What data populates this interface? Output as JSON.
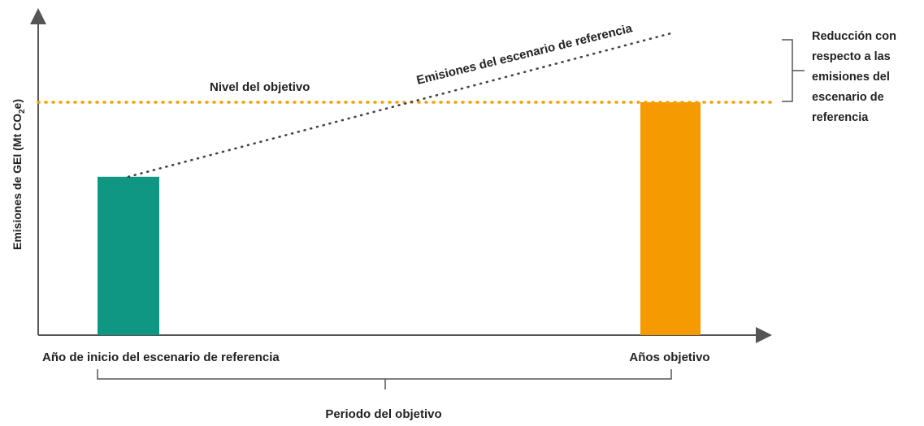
{
  "colors": {
    "base_bar": "#0f9784",
    "target_bar": "#f59a00",
    "target_line": "#f5a000",
    "baseline_line": "#444444",
    "axis": "#555555",
    "text": "#222222"
  },
  "labels": {
    "y_axis": "Emisiones de GEI (Mt CO₂e)",
    "target_level": "Nivel del objetivo",
    "baseline_emissions": "Emisiones del escenario de referencia",
    "reduction_lines": [
      "Reducción con",
      "respecto a las",
      "emisiones del",
      "escenario de",
      "referencia"
    ],
    "x_start": "Año de inicio del escenario de referencia",
    "x_end": "Años objetivo",
    "period": "Periodo del objetivo"
  },
  "chart_data": {
    "type": "bar",
    "categories": [
      "Año de inicio del escenario de referencia",
      "Años objetivo"
    ],
    "values": [
      0.68,
      1.0
    ],
    "value_units": "fraction of target level (no numeric axis printed)",
    "baseline_endpoint": 1.3
  }
}
